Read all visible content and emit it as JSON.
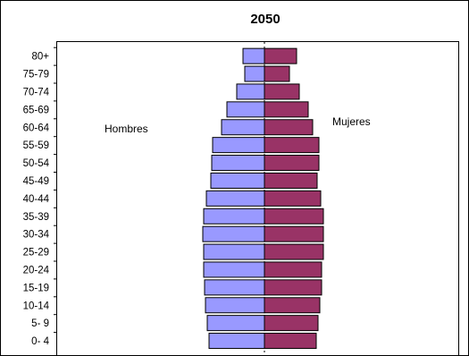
{
  "chart_data": {
    "type": "bar",
    "subtype": "population-pyramid",
    "title": "2050",
    "categories": [
      "0- 4",
      "5- 9",
      "10-14",
      "15-19",
      "20-24",
      "25-29",
      "30-34",
      "35-39",
      "40-44",
      "45-49",
      "50-54",
      "55-59",
      "60-64",
      "65-69",
      "70-74",
      "75-79",
      "80+"
    ],
    "series": [
      {
        "name": "Hombres",
        "side": "left",
        "color": "#9999ff",
        "values": [
          62,
          64,
          66,
          67,
          68,
          68,
          69,
          68,
          65,
          60,
          59,
          58,
          48,
          42,
          31,
          22,
          24
        ]
      },
      {
        "name": "Mujeres",
        "side": "right",
        "color": "#993366",
        "values": [
          58,
          60,
          62,
          64,
          64,
          66,
          66,
          66,
          63,
          59,
          61,
          61,
          54,
          49,
          39,
          28,
          36
        ]
      }
    ],
    "grid": false,
    "legend": "none"
  }
}
